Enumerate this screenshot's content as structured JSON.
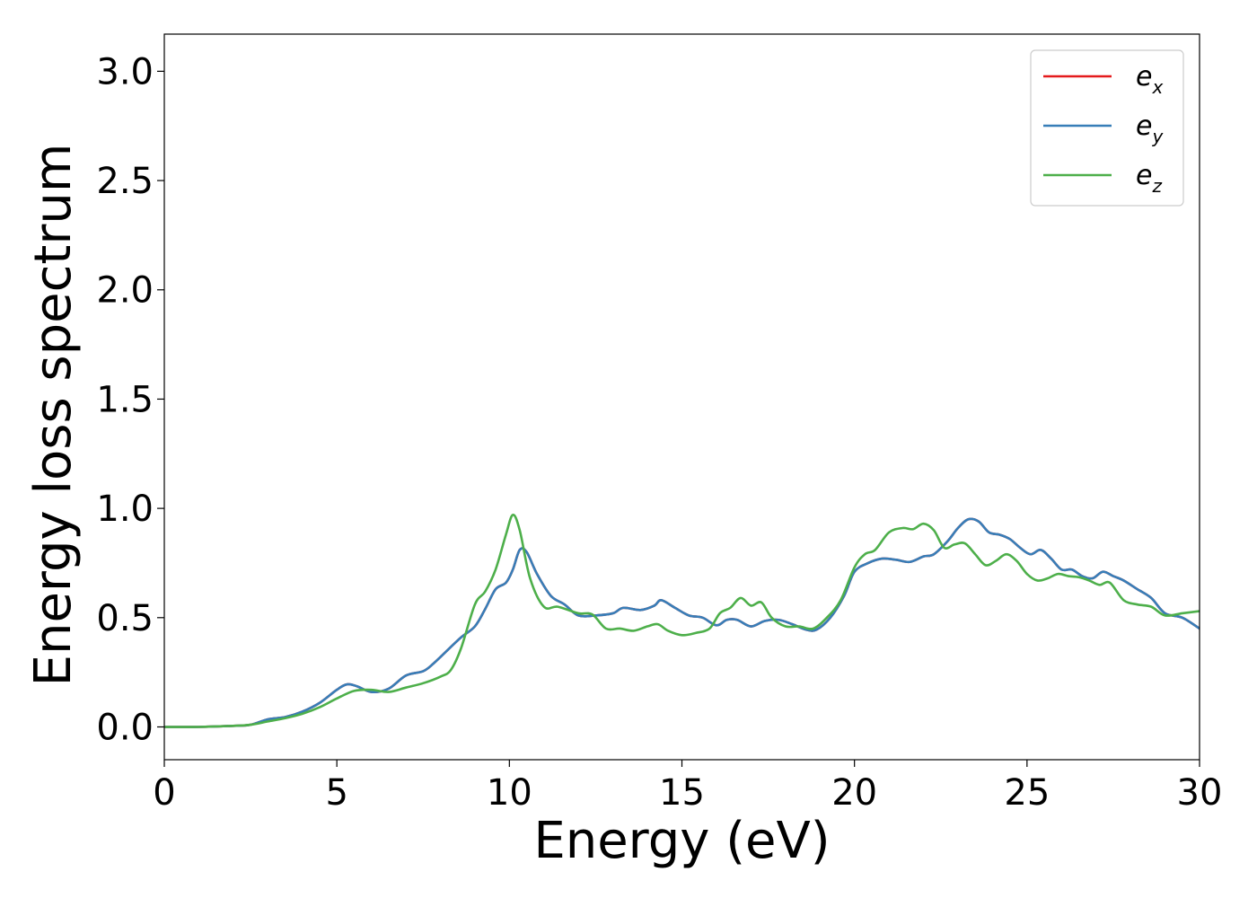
{
  "chart_data": {
    "type": "line",
    "title": "",
    "xlabel": "Energy (eV)",
    "ylabel": "Energy loss spectrum",
    "xlim": [
      0,
      30
    ],
    "ylim": [
      -0.15,
      3.17
    ],
    "xticks": [
      "0",
      "5",
      "10",
      "15",
      "20",
      "25",
      "30"
    ],
    "yticks": [
      "0.0",
      "0.5",
      "1.0",
      "1.5",
      "2.0",
      "2.5",
      "3.0"
    ],
    "grid": false,
    "legend_position": "top-right",
    "series": [
      {
        "name": "e_x",
        "legend_base": "e",
        "legend_sub": "x",
        "color": "#e41a1c",
        "x": [
          0,
          1,
          2,
          2.5,
          3,
          3.5,
          4,
          4.5,
          5,
          5.3,
          5.6,
          6,
          6.5,
          7,
          7.5,
          7.8,
          8.2,
          8.6,
          9,
          9.3,
          9.6,
          9.9,
          10.1,
          10.3,
          10.5,
          10.8,
          11.2,
          11.6,
          12,
          12.5,
          13,
          13.3,
          13.8,
          14.2,
          14.4,
          14.8,
          15.2,
          15.6,
          16,
          16.3,
          16.6,
          17,
          17.4,
          17.8,
          18.2,
          18.6,
          18.9,
          19.3,
          19.7,
          20,
          20.4,
          20.8,
          21.2,
          21.6,
          22,
          22.3,
          22.7,
          23,
          23.3,
          23.6,
          23.9,
          24.2,
          24.5,
          24.8,
          25.1,
          25.4,
          25.7,
          26,
          26.3,
          26.6,
          26.9,
          27.2,
          27.5,
          27.8,
          28.2,
          28.6,
          29,
          29.5,
          30
        ],
        "values": [
          0,
          0,
          0.005,
          0.01,
          0.035,
          0.045,
          0.07,
          0.11,
          0.17,
          0.195,
          0.185,
          0.16,
          0.175,
          0.235,
          0.255,
          0.29,
          0.35,
          0.41,
          0.46,
          0.54,
          0.63,
          0.66,
          0.72,
          0.81,
          0.8,
          0.7,
          0.6,
          0.56,
          0.51,
          0.51,
          0.52,
          0.545,
          0.535,
          0.555,
          0.58,
          0.545,
          0.51,
          0.5,
          0.465,
          0.49,
          0.49,
          0.46,
          0.485,
          0.49,
          0.47,
          0.445,
          0.445,
          0.5,
          0.6,
          0.71,
          0.75,
          0.77,
          0.765,
          0.755,
          0.78,
          0.79,
          0.85,
          0.91,
          0.95,
          0.94,
          0.89,
          0.88,
          0.86,
          0.82,
          0.79,
          0.81,
          0.77,
          0.72,
          0.72,
          0.69,
          0.68,
          0.71,
          0.69,
          0.67,
          0.63,
          0.59,
          0.52,
          0.5,
          0.45
        ]
      },
      {
        "name": "e_y",
        "legend_base": "e",
        "legend_sub": "y",
        "color": "#377eb8",
        "x": [
          0,
          1,
          2,
          2.5,
          3,
          3.5,
          4,
          4.5,
          5,
          5.3,
          5.6,
          6,
          6.5,
          7,
          7.5,
          7.8,
          8.2,
          8.6,
          9,
          9.3,
          9.6,
          9.9,
          10.1,
          10.3,
          10.5,
          10.8,
          11.2,
          11.6,
          12,
          12.5,
          13,
          13.3,
          13.8,
          14.2,
          14.4,
          14.8,
          15.2,
          15.6,
          16,
          16.3,
          16.6,
          17,
          17.4,
          17.8,
          18.2,
          18.6,
          18.9,
          19.3,
          19.7,
          20,
          20.4,
          20.8,
          21.2,
          21.6,
          22,
          22.3,
          22.7,
          23,
          23.3,
          23.6,
          23.9,
          24.2,
          24.5,
          24.8,
          25.1,
          25.4,
          25.7,
          26,
          26.3,
          26.6,
          26.9,
          27.2,
          27.5,
          27.8,
          28.2,
          28.6,
          29,
          29.5,
          30
        ],
        "values": [
          0,
          0,
          0.005,
          0.01,
          0.035,
          0.045,
          0.07,
          0.11,
          0.17,
          0.195,
          0.185,
          0.16,
          0.175,
          0.235,
          0.255,
          0.29,
          0.35,
          0.41,
          0.46,
          0.54,
          0.63,
          0.66,
          0.72,
          0.81,
          0.8,
          0.7,
          0.6,
          0.56,
          0.51,
          0.51,
          0.52,
          0.545,
          0.535,
          0.555,
          0.58,
          0.545,
          0.51,
          0.5,
          0.465,
          0.49,
          0.49,
          0.46,
          0.485,
          0.49,
          0.47,
          0.445,
          0.445,
          0.5,
          0.6,
          0.71,
          0.75,
          0.77,
          0.765,
          0.755,
          0.78,
          0.79,
          0.85,
          0.91,
          0.95,
          0.94,
          0.89,
          0.88,
          0.86,
          0.82,
          0.79,
          0.81,
          0.77,
          0.72,
          0.72,
          0.69,
          0.68,
          0.71,
          0.69,
          0.67,
          0.63,
          0.59,
          0.52,
          0.5,
          0.45
        ]
      },
      {
        "name": "e_z",
        "legend_base": "e",
        "legend_sub": "z",
        "color": "#4daf4a",
        "x": [
          0,
          1,
          2,
          2.5,
          3,
          3.5,
          4,
          4.5,
          5,
          5.5,
          6,
          6.5,
          7,
          7.5,
          8,
          8.3,
          8.6,
          9,
          9.3,
          9.6,
          9.9,
          10.1,
          10.3,
          10.6,
          11,
          11.4,
          12,
          12.4,
          12.8,
          13.2,
          13.6,
          14,
          14.3,
          14.6,
          15,
          15.4,
          15.8,
          16.1,
          16.4,
          16.7,
          17,
          17.3,
          17.6,
          18,
          18.4,
          18.8,
          19.2,
          19.6,
          20,
          20.3,
          20.6,
          21,
          21.4,
          21.7,
          22,
          22.3,
          22.6,
          22.9,
          23.2,
          23.5,
          23.8,
          24.1,
          24.4,
          24.7,
          25,
          25.3,
          25.6,
          25.9,
          26.2,
          26.5,
          26.8,
          27.1,
          27.4,
          27.8,
          28.2,
          28.6,
          29,
          29.5,
          30
        ],
        "values": [
          0,
          0,
          0.005,
          0.01,
          0.025,
          0.04,
          0.06,
          0.09,
          0.13,
          0.165,
          0.17,
          0.16,
          0.18,
          0.2,
          0.23,
          0.26,
          0.36,
          0.56,
          0.62,
          0.72,
          0.88,
          0.97,
          0.9,
          0.68,
          0.55,
          0.55,
          0.52,
          0.515,
          0.45,
          0.45,
          0.44,
          0.46,
          0.47,
          0.44,
          0.42,
          0.43,
          0.45,
          0.52,
          0.545,
          0.59,
          0.555,
          0.57,
          0.5,
          0.46,
          0.46,
          0.45,
          0.5,
          0.58,
          0.73,
          0.79,
          0.81,
          0.89,
          0.91,
          0.905,
          0.93,
          0.9,
          0.82,
          0.835,
          0.84,
          0.79,
          0.74,
          0.76,
          0.79,
          0.76,
          0.7,
          0.67,
          0.68,
          0.7,
          0.69,
          0.685,
          0.67,
          0.65,
          0.66,
          0.58,
          0.56,
          0.55,
          0.51,
          0.52,
          0.53
        ]
      }
    ]
  }
}
